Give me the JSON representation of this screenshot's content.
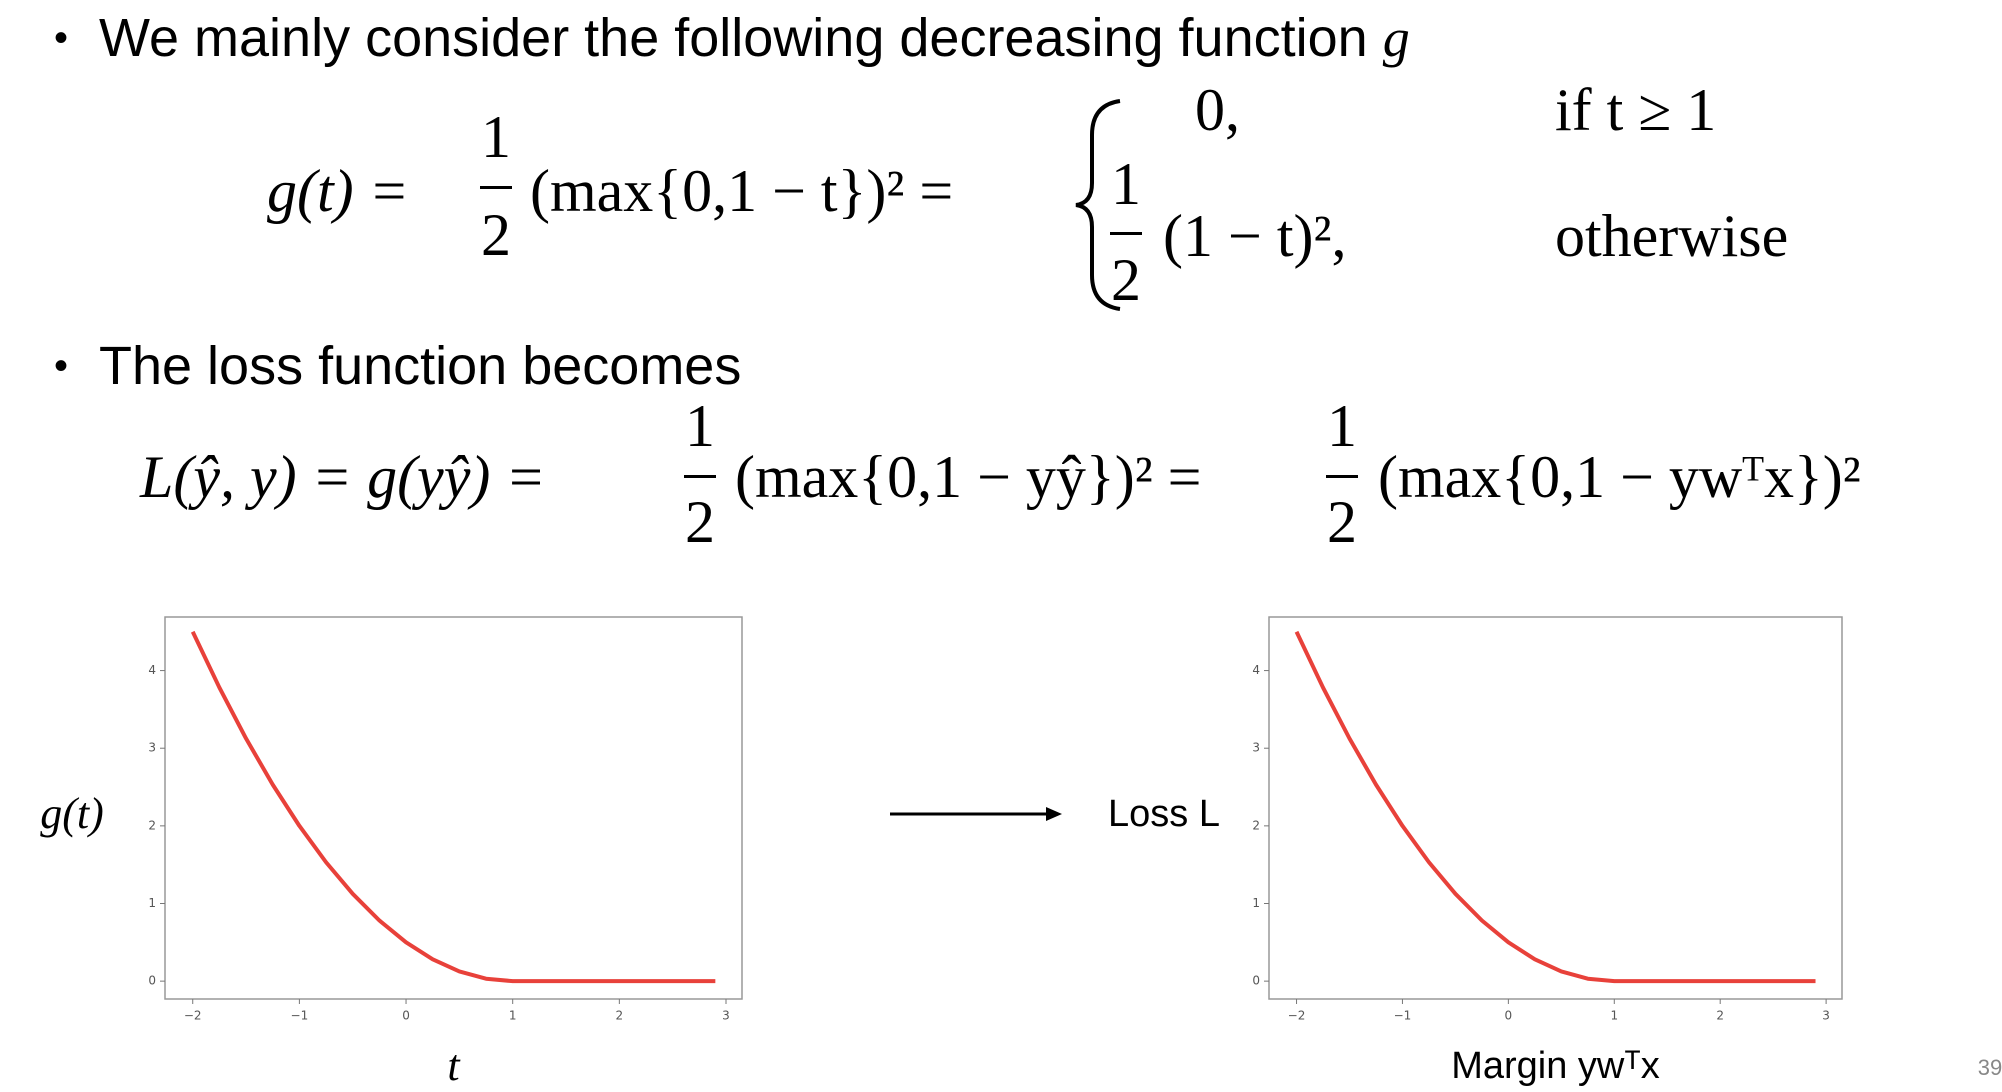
{
  "bullets": [
    {
      "text": "We mainly consider the following decreasing function",
      "symbol": "g"
    },
    {
      "text": "The loss function becomes"
    }
  ],
  "equation_1": {
    "lhs": "g(t) =",
    "frac_num": "1",
    "frac_den": "2",
    "middle": "(max{0,1 − t})² =",
    "cases": [
      {
        "expr": "0,",
        "condition": "if t ≥ 1"
      },
      {
        "frac_num": "1",
        "frac_den": "2",
        "expr": "(1 − t)²,",
        "condition": "otherwise"
      }
    ]
  },
  "equation_2": {
    "lhs": "L(ŷ, y) = g(yŷ) =",
    "frac_num": "1",
    "frac_den": "2",
    "middle": "(max{0,1 − yŷ})² =",
    "frac2_num": "1",
    "frac2_den": "2",
    "rhs": "(max{0,1 − ywᵀx})²"
  },
  "arrow_from_to": "→",
  "page_number": "39",
  "chart_data": [
    {
      "type": "line",
      "ylabel": "g(t)",
      "xlabel": "t",
      "color": "#e8413a",
      "x": [
        -2,
        -1.75,
        -1.5,
        -1.25,
        -1,
        -0.75,
        -0.5,
        -0.25,
        0,
        0.25,
        0.5,
        0.75,
        1,
        2,
        2.9
      ],
      "values": [
        4.5,
        3.78125,
        3.125,
        2.53125,
        2,
        1.53125,
        1.125,
        0.78125,
        0.5,
        0.28125,
        0.125,
        0.03125,
        0,
        0,
        0
      ],
      "xlim": [
        -2.26,
        3.15
      ],
      "ylim": [
        -0.23,
        4.69
      ],
      "xticks": [
        {
          "value": -2,
          "label": "−2"
        },
        {
          "value": -1,
          "label": "−1"
        },
        0,
        1,
        2,
        3
      ],
      "yticks": [
        0,
        1,
        2,
        3,
        4
      ]
    },
    {
      "type": "line",
      "ylabel": "Loss L",
      "xlabel": "Margin ywᵀx",
      "color": "#e8413a",
      "x": [
        -2,
        -1.75,
        -1.5,
        -1.25,
        -1,
        -0.75,
        -0.5,
        -0.25,
        0,
        0.25,
        0.5,
        0.75,
        1,
        2,
        2.9
      ],
      "values": [
        4.5,
        3.78125,
        3.125,
        2.53125,
        2,
        1.53125,
        1.125,
        0.78125,
        0.5,
        0.28125,
        0.125,
        0.03125,
        0,
        0,
        0
      ],
      "xlim": [
        -2.26,
        3.15
      ],
      "ylim": [
        -0.23,
        4.69
      ],
      "xticks": [
        {
          "value": -2,
          "label": "−2"
        },
        {
          "value": -1,
          "label": "−1"
        },
        0,
        1,
        2,
        3
      ],
      "yticks": [
        0,
        1,
        2,
        3,
        4
      ]
    }
  ]
}
